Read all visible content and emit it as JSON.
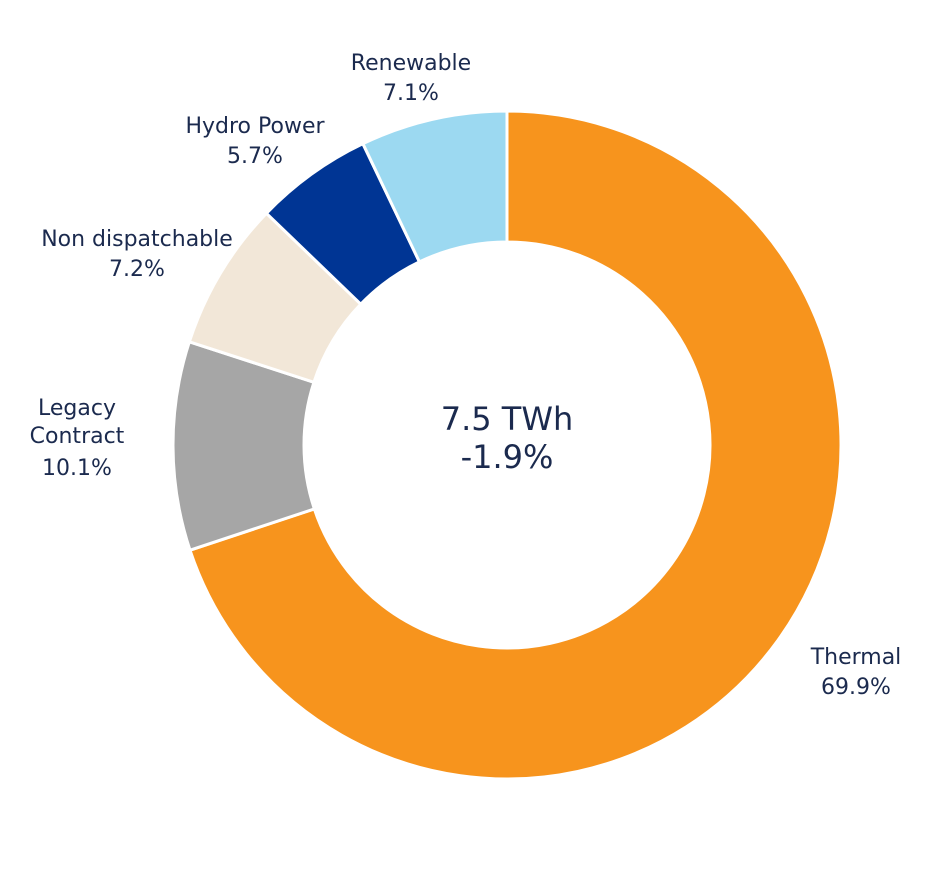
{
  "chart_data": {
    "type": "pie",
    "donut": true,
    "center": {
      "total": "7.5 TWh",
      "change": "-1.9%"
    },
    "slices": [
      {
        "name": "Thermal",
        "value": 69.9,
        "label": "69.9%",
        "color": "#f7941d"
      },
      {
        "name": "Legacy Contract",
        "name_lines": [
          "Legacy",
          "Contract"
        ],
        "value": 10.1,
        "label": "10.1%",
        "color": "#a6a6a6"
      },
      {
        "name": "Non dispatchable",
        "value": 7.2,
        "label": "7.2%",
        "color": "#f2e7d8"
      },
      {
        "name": "Hydro Power",
        "value": 5.7,
        "label": "5.7%",
        "color": "#003594"
      },
      {
        "name": "Renewable",
        "value": 7.1,
        "label": "7.1%",
        "color": "#9cd9f1"
      }
    ]
  }
}
